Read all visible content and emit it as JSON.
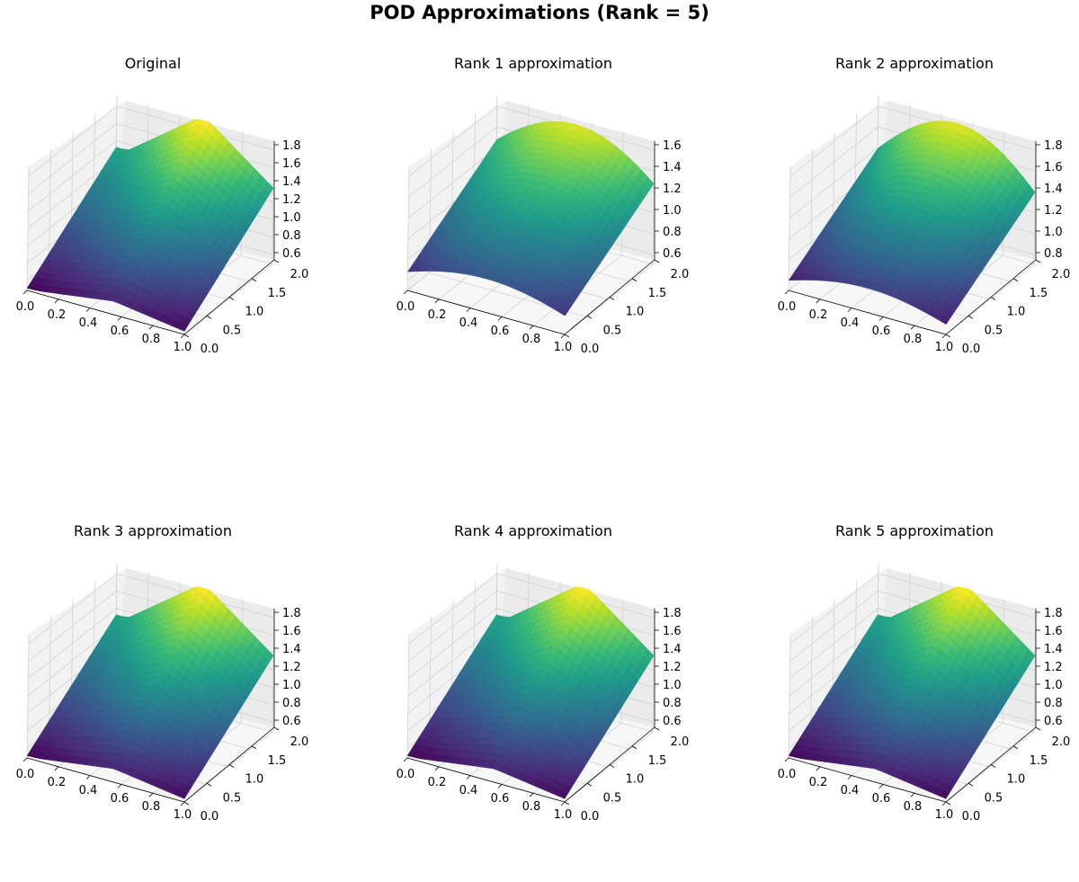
{
  "figure": {
    "suptitle": "POD Approximations (Rank = 5)"
  },
  "chart_data": [
    {
      "type": "surface",
      "title": "Original",
      "x_ticks": [
        "0.0",
        "0.2",
        "0.4",
        "0.6",
        "0.8",
        "1.0"
      ],
      "y_ticks": [
        "0.0",
        "0.5",
        "1.0",
        "1.5",
        "2.0"
      ],
      "z_ticks": [
        "0.6",
        "0.8",
        "1.0",
        "1.2",
        "1.4",
        "1.6",
        "1.8"
      ],
      "xlim": [
        0,
        1
      ],
      "ylim": [
        0,
        2
      ],
      "zlim": [
        0.6,
        1.85
      ],
      "colormap": "viridis",
      "grid": true
    },
    {
      "type": "surface",
      "title": "Rank 1 approximation",
      "x_ticks": [
        "0.0",
        "0.2",
        "0.4",
        "0.6",
        "0.8",
        "1.0"
      ],
      "y_ticks": [
        "0.0",
        "0.5",
        "1.0",
        "1.5",
        "2.0"
      ],
      "z_ticks": [
        "0.6",
        "0.8",
        "1.0",
        "1.2",
        "1.4",
        "1.6"
      ],
      "xlim": [
        0,
        1
      ],
      "ylim": [
        0,
        2
      ],
      "zlim": [
        0.5,
        1.75
      ],
      "colormap": "viridis",
      "grid": true
    },
    {
      "type": "surface",
      "title": "Rank 2 approximation",
      "x_ticks": [
        "0.0",
        "0.2",
        "0.4",
        "0.6",
        "0.8",
        "1.0"
      ],
      "y_ticks": [
        "0.0",
        "0.5",
        "1.0",
        "1.5",
        "2.0"
      ],
      "z_ticks": [
        "0.8",
        "1.0",
        "1.2",
        "1.4",
        "1.6",
        "1.8"
      ],
      "xlim": [
        0,
        1
      ],
      "ylim": [
        0,
        2
      ],
      "zlim": [
        0.7,
        1.85
      ],
      "colormap": "viridis",
      "grid": true
    },
    {
      "type": "surface",
      "title": "Rank 3 approximation",
      "x_ticks": [
        "0.0",
        "0.2",
        "0.4",
        "0.6",
        "0.8",
        "1.0"
      ],
      "y_ticks": [
        "0.0",
        "0.5",
        "1.0",
        "1.5",
        "2.0"
      ],
      "z_ticks": [
        "0.6",
        "0.8",
        "1.0",
        "1.2",
        "1.4",
        "1.6",
        "1.8"
      ],
      "xlim": [
        0,
        1
      ],
      "ylim": [
        0,
        2
      ],
      "zlim": [
        0.6,
        1.85
      ],
      "colormap": "viridis",
      "grid": true
    },
    {
      "type": "surface",
      "title": "Rank 4 approximation",
      "x_ticks": [
        "0.0",
        "0.2",
        "0.4",
        "0.6",
        "0.8",
        "1.0"
      ],
      "y_ticks": [
        "0.0",
        "0.5",
        "1.0",
        "1.5",
        "2.0"
      ],
      "z_ticks": [
        "0.6",
        "0.8",
        "1.0",
        "1.2",
        "1.4",
        "1.6",
        "1.8"
      ],
      "xlim": [
        0,
        1
      ],
      "ylim": [
        0,
        2
      ],
      "zlim": [
        0.6,
        1.85
      ],
      "colormap": "viridis",
      "grid": true
    },
    {
      "type": "surface",
      "title": "Rank 5 approximation",
      "x_ticks": [
        "0.0",
        "0.2",
        "0.4",
        "0.6",
        "0.8",
        "1.0"
      ],
      "y_ticks": [
        "0.0",
        "0.5",
        "1.0",
        "1.5",
        "2.0"
      ],
      "z_ticks": [
        "0.6",
        "0.8",
        "1.0",
        "1.2",
        "1.4",
        "1.6",
        "1.8"
      ],
      "xlim": [
        0,
        1
      ],
      "ylim": [
        0,
        2
      ],
      "zlim": [
        0.6,
        1.85
      ],
      "colormap": "viridis",
      "grid": true
    }
  ]
}
